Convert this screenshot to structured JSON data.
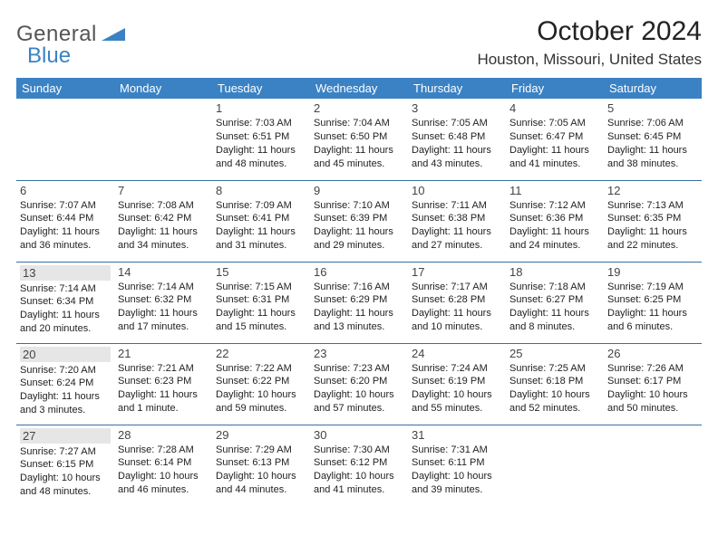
{
  "logo": {
    "part1": "General",
    "part2": "Blue"
  },
  "title": "October 2024",
  "location": "Houston, Missouri, United States",
  "colors": {
    "brand": "#3b82c4",
    "header_bg": "#3b82c4",
    "rule": "#3b6fa0",
    "shade": "#e6e6e6"
  },
  "weekdays": [
    "Sunday",
    "Monday",
    "Tuesday",
    "Wednesday",
    "Thursday",
    "Friday",
    "Saturday"
  ],
  "weeks": [
    [
      {
        "n": "",
        "lines": []
      },
      {
        "n": "",
        "lines": []
      },
      {
        "n": "1",
        "lines": [
          "Sunrise: 7:03 AM",
          "Sunset: 6:51 PM",
          "Daylight: 11 hours",
          "and 48 minutes."
        ]
      },
      {
        "n": "2",
        "lines": [
          "Sunrise: 7:04 AM",
          "Sunset: 6:50 PM",
          "Daylight: 11 hours",
          "and 45 minutes."
        ]
      },
      {
        "n": "3",
        "lines": [
          "Sunrise: 7:05 AM",
          "Sunset: 6:48 PM",
          "Daylight: 11 hours",
          "and 43 minutes."
        ]
      },
      {
        "n": "4",
        "lines": [
          "Sunrise: 7:05 AM",
          "Sunset: 6:47 PM",
          "Daylight: 11 hours",
          "and 41 minutes."
        ]
      },
      {
        "n": "5",
        "lines": [
          "Sunrise: 7:06 AM",
          "Sunset: 6:45 PM",
          "Daylight: 11 hours",
          "and 38 minutes."
        ]
      }
    ],
    [
      {
        "n": "6",
        "lines": [
          "Sunrise: 7:07 AM",
          "Sunset: 6:44 PM",
          "Daylight: 11 hours",
          "and 36 minutes."
        ]
      },
      {
        "n": "7",
        "lines": [
          "Sunrise: 7:08 AM",
          "Sunset: 6:42 PM",
          "Daylight: 11 hours",
          "and 34 minutes."
        ]
      },
      {
        "n": "8",
        "lines": [
          "Sunrise: 7:09 AM",
          "Sunset: 6:41 PM",
          "Daylight: 11 hours",
          "and 31 minutes."
        ]
      },
      {
        "n": "9",
        "lines": [
          "Sunrise: 7:10 AM",
          "Sunset: 6:39 PM",
          "Daylight: 11 hours",
          "and 29 minutes."
        ]
      },
      {
        "n": "10",
        "lines": [
          "Sunrise: 7:11 AM",
          "Sunset: 6:38 PM",
          "Daylight: 11 hours",
          "and 27 minutes."
        ]
      },
      {
        "n": "11",
        "lines": [
          "Sunrise: 7:12 AM",
          "Sunset: 6:36 PM",
          "Daylight: 11 hours",
          "and 24 minutes."
        ]
      },
      {
        "n": "12",
        "lines": [
          "Sunrise: 7:13 AM",
          "Sunset: 6:35 PM",
          "Daylight: 11 hours",
          "and 22 minutes."
        ]
      }
    ],
    [
      {
        "n": "13",
        "shade": true,
        "lines": [
          "Sunrise: 7:14 AM",
          "Sunset: 6:34 PM",
          "Daylight: 11 hours",
          "and 20 minutes."
        ]
      },
      {
        "n": "14",
        "lines": [
          "Sunrise: 7:14 AM",
          "Sunset: 6:32 PM",
          "Daylight: 11 hours",
          "and 17 minutes."
        ]
      },
      {
        "n": "15",
        "lines": [
          "Sunrise: 7:15 AM",
          "Sunset: 6:31 PM",
          "Daylight: 11 hours",
          "and 15 minutes."
        ]
      },
      {
        "n": "16",
        "lines": [
          "Sunrise: 7:16 AM",
          "Sunset: 6:29 PM",
          "Daylight: 11 hours",
          "and 13 minutes."
        ]
      },
      {
        "n": "17",
        "lines": [
          "Sunrise: 7:17 AM",
          "Sunset: 6:28 PM",
          "Daylight: 11 hours",
          "and 10 minutes."
        ]
      },
      {
        "n": "18",
        "lines": [
          "Sunrise: 7:18 AM",
          "Sunset: 6:27 PM",
          "Daylight: 11 hours",
          "and 8 minutes."
        ]
      },
      {
        "n": "19",
        "lines": [
          "Sunrise: 7:19 AM",
          "Sunset: 6:25 PM",
          "Daylight: 11 hours",
          "and 6 minutes."
        ]
      }
    ],
    [
      {
        "n": "20",
        "shade": true,
        "lines": [
          "Sunrise: 7:20 AM",
          "Sunset: 6:24 PM",
          "Daylight: 11 hours",
          "and 3 minutes."
        ]
      },
      {
        "n": "21",
        "lines": [
          "Sunrise: 7:21 AM",
          "Sunset: 6:23 PM",
          "Daylight: 11 hours",
          "and 1 minute."
        ]
      },
      {
        "n": "22",
        "lines": [
          "Sunrise: 7:22 AM",
          "Sunset: 6:22 PM",
          "Daylight: 10 hours",
          "and 59 minutes."
        ]
      },
      {
        "n": "23",
        "lines": [
          "Sunrise: 7:23 AM",
          "Sunset: 6:20 PM",
          "Daylight: 10 hours",
          "and 57 minutes."
        ]
      },
      {
        "n": "24",
        "lines": [
          "Sunrise: 7:24 AM",
          "Sunset: 6:19 PM",
          "Daylight: 10 hours",
          "and 55 minutes."
        ]
      },
      {
        "n": "25",
        "lines": [
          "Sunrise: 7:25 AM",
          "Sunset: 6:18 PM",
          "Daylight: 10 hours",
          "and 52 minutes."
        ]
      },
      {
        "n": "26",
        "lines": [
          "Sunrise: 7:26 AM",
          "Sunset: 6:17 PM",
          "Daylight: 10 hours",
          "and 50 minutes."
        ]
      }
    ],
    [
      {
        "n": "27",
        "shade": true,
        "lines": [
          "Sunrise: 7:27 AM",
          "Sunset: 6:15 PM",
          "Daylight: 10 hours",
          "and 48 minutes."
        ]
      },
      {
        "n": "28",
        "lines": [
          "Sunrise: 7:28 AM",
          "Sunset: 6:14 PM",
          "Daylight: 10 hours",
          "and 46 minutes."
        ]
      },
      {
        "n": "29",
        "lines": [
          "Sunrise: 7:29 AM",
          "Sunset: 6:13 PM",
          "Daylight: 10 hours",
          "and 44 minutes."
        ]
      },
      {
        "n": "30",
        "lines": [
          "Sunrise: 7:30 AM",
          "Sunset: 6:12 PM",
          "Daylight: 10 hours",
          "and 41 minutes."
        ]
      },
      {
        "n": "31",
        "lines": [
          "Sunrise: 7:31 AM",
          "Sunset: 6:11 PM",
          "Daylight: 10 hours",
          "and 39 minutes."
        ]
      },
      {
        "n": "",
        "lines": []
      },
      {
        "n": "",
        "lines": []
      }
    ]
  ]
}
